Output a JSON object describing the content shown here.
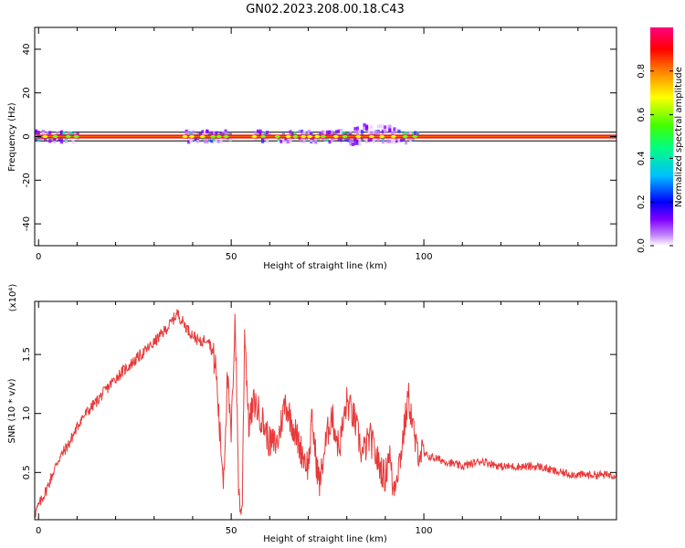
{
  "title": "GN02.2023.208.00.18.C43",
  "chart_data": [
    {
      "type": "heatmap",
      "xlabel": "Height of straight line (km)",
      "ylabel": "Frequency (Hz)",
      "xlim": [
        -1,
        150
      ],
      "ylim": [
        -50,
        50
      ],
      "xticks": [
        0,
        50,
        100
      ],
      "yticks": [
        -40,
        -20,
        0,
        20,
        40
      ],
      "colorbar": {
        "label": "Normalized spectral amplitude",
        "range": [
          0,
          1
        ],
        "ticks": [
          0.0,
          0.2,
          0.4,
          0.6,
          0.8
        ],
        "colormap": "rainbow",
        "colors": [
          "#ffffff",
          "#8000ff",
          "#0000ff",
          "#00c0ff",
          "#00ff80",
          "#40ff00",
          "#ffff00",
          "#ff8000",
          "#ff0000",
          "#ff0080"
        ]
      },
      "band": {
        "center_hz": 0,
        "core_halfwidth_hz": 1,
        "noisy_segments_km": [
          [
            -1,
            10
          ],
          [
            38,
            50
          ],
          [
            56,
            60
          ],
          [
            62,
            98
          ]
        ]
      },
      "frame_lines_hz": [
        -2,
        2
      ]
    },
    {
      "type": "line",
      "xlabel": "Height of straight line (km)",
      "ylabel": "SNR (10 * v/v)",
      "y_multiplier": "(x10⁴)",
      "xlim": [
        -1,
        150
      ],
      "ylim": [
        1000,
        19500
      ],
      "xticks": [
        0,
        50,
        100
      ],
      "yticks": [
        5000,
        10000,
        15000
      ],
      "ytick_labels": [
        "0.5",
        "1.0",
        "1.5"
      ],
      "color": "#e83a3a",
      "series": [
        {
          "x": [
            -1,
            2,
            5,
            8,
            11,
            15,
            20,
            25,
            30,
            34,
            36,
            39,
            42,
            44,
            46,
            47,
            48,
            49,
            50,
            51,
            52,
            52.8,
            53.5,
            54.5,
            56,
            58,
            60,
            62,
            64,
            66,
            68,
            70,
            71,
            72,
            73,
            74,
            76,
            78,
            80,
            82,
            84,
            86,
            88,
            90,
            91,
            92,
            94,
            96,
            98,
            100,
            105,
            110,
            115,
            120,
            125,
            130,
            135,
            140,
            145,
            150
          ],
          "y": [
            1500,
            3500,
            6000,
            7500,
            9500,
            11000,
            13000,
            14500,
            16000,
            17500,
            18500,
            17000,
            16000,
            16500,
            14000,
            8500,
            4500,
            13000,
            8000,
            18500,
            3000,
            1200,
            17500,
            9000,
            11000,
            9500,
            7500,
            7500,
            11000,
            9000,
            7000,
            5500,
            9500,
            6000,
            4000,
            6500,
            10000,
            7000,
            11000,
            9500,
            6500,
            8000,
            6000,
            4500,
            7000,
            3500,
            6500,
            11500,
            7000,
            6500,
            6000,
            5500,
            6000,
            5500,
            5500,
            5500,
            5000,
            4800,
            4800,
            4800
          ]
        }
      ]
    }
  ]
}
